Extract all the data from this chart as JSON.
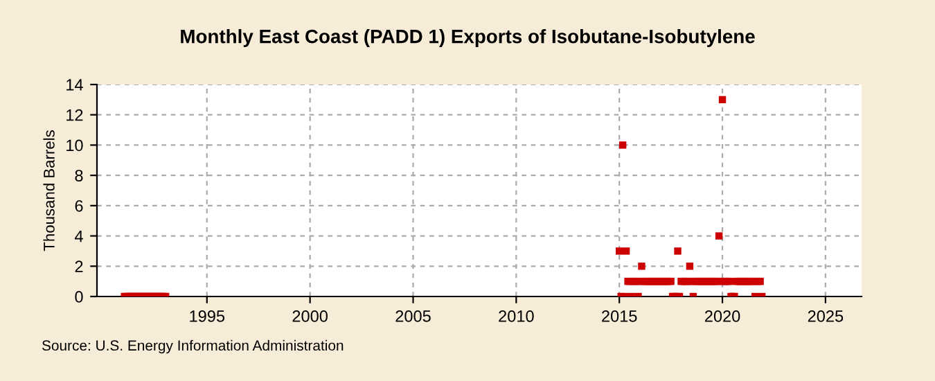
{
  "chart_data": {
    "type": "scatter",
    "title": "Monthly East Coast (PADD 1) Exports of Isobutane-Isobutylene",
    "ylabel": "Thousand Barrels",
    "annotations": [
      "Source: U.S. Energy Information Administration"
    ],
    "x": [
      "1991-01",
      "1991-02",
      "1991-03",
      "1991-04",
      "1991-05",
      "1991-06",
      "1991-07",
      "1991-08",
      "1991-09",
      "1991-10",
      "1991-11",
      "1991-12",
      "1992-01",
      "1992-02",
      "1992-03",
      "1992-04",
      "1992-05",
      "1992-06",
      "1992-07",
      "1992-08",
      "1992-09",
      "1992-10",
      "1992-11",
      "1992-12",
      "1993-01",
      "2015-01",
      "2015-02",
      "2015-03",
      "2015-04",
      "2015-05",
      "2015-06",
      "2015-07",
      "2015-08",
      "2015-09",
      "2015-10",
      "2015-11",
      "2015-12",
      "2016-01",
      "2016-02",
      "2016-03",
      "2016-04",
      "2016-05",
      "2016-06",
      "2016-07",
      "2016-08",
      "2016-09",
      "2016-10",
      "2016-11",
      "2016-12",
      "2017-01",
      "2017-02",
      "2017-03",
      "2017-04",
      "2017-05",
      "2017-06",
      "2017-07",
      "2017-08",
      "2017-09",
      "2017-10",
      "2017-11",
      "2017-12",
      "2018-01",
      "2018-02",
      "2018-03",
      "2018-04",
      "2018-05",
      "2018-06",
      "2018-07",
      "2018-08",
      "2018-09",
      "2018-10",
      "2018-11",
      "2018-12",
      "2019-01",
      "2019-02",
      "2019-03",
      "2019-04",
      "2019-05",
      "2019-06",
      "2019-07",
      "2019-08",
      "2019-09",
      "2019-10",
      "2019-11",
      "2019-12",
      "2020-01",
      "2020-02",
      "2020-03",
      "2020-04",
      "2020-05",
      "2020-06",
      "2020-07",
      "2020-08",
      "2020-09",
      "2020-10",
      "2020-11",
      "2020-12",
      "2021-01",
      "2021-02",
      "2021-03",
      "2021-04",
      "2021-05",
      "2021-06",
      "2021-07",
      "2021-08",
      "2021-09",
      "2021-10",
      "2021-11",
      "2021-12"
    ],
    "series": [
      {
        "color": "#cc0000",
        "values": [
          0,
          0,
          0,
          0,
          0,
          0,
          0,
          0,
          0,
          0,
          0,
          0,
          0,
          0,
          0,
          0,
          0,
          0,
          0,
          0,
          0,
          0,
          0,
          0,
          0,
          3,
          0,
          10,
          0,
          3,
          1,
          1,
          0,
          1,
          1,
          1,
          0,
          1,
          2,
          1,
          1,
          1,
          1,
          1,
          1,
          1,
          1,
          1,
          1,
          1,
          1,
          1,
          1,
          1,
          1,
          1,
          0,
          0,
          0,
          3,
          0,
          1,
          1,
          1,
          1,
          1,
          2,
          1,
          0,
          1,
          1,
          1,
          1,
          1,
          1,
          1,
          1,
          1,
          1,
          1,
          1,
          1,
          1,
          4,
          1,
          13,
          1,
          1,
          1,
          1,
          0,
          0,
          0,
          1,
          1,
          1,
          1,
          1,
          1,
          1,
          1,
          1,
          1,
          1,
          0,
          1,
          1,
          1,
          0
        ]
      }
    ],
    "marker": "square",
    "xlim": [
      "1989-09",
      "2026-10"
    ],
    "xticks": [
      "1995",
      "2000",
      "2005",
      "2010",
      "2015",
      "2020",
      "2025"
    ],
    "ylim": [
      0,
      14
    ],
    "yticks": [
      0,
      2,
      4,
      6,
      8,
      10,
      12,
      14
    ],
    "grid": true
  }
}
